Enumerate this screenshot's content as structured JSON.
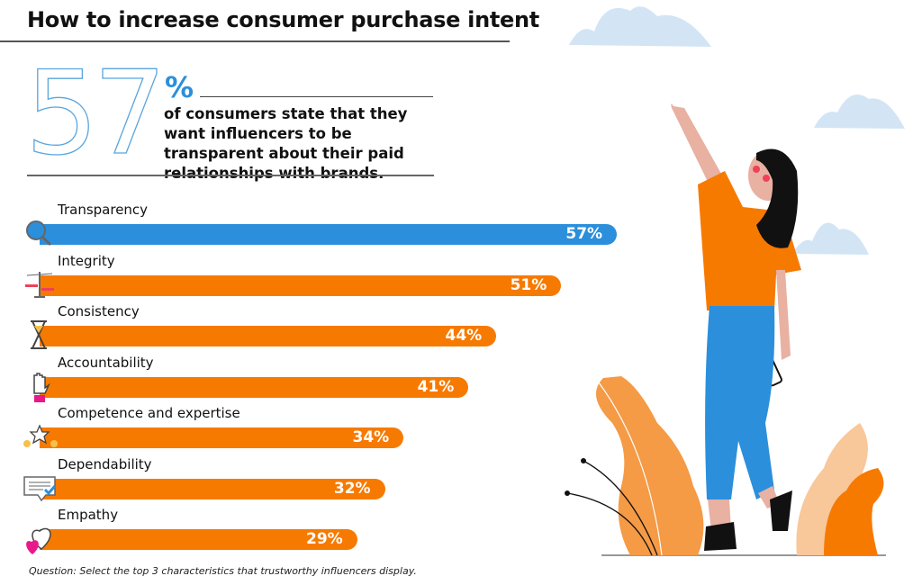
{
  "title": "How to increase consumer purchase intent",
  "highlight": {
    "number": "57",
    "percent_sign": "%",
    "statement": "of consumers state that they want influencers to be transparent about their paid relationships with brands."
  },
  "colors": {
    "blue": "#2b8fdb",
    "orange": "#f77a00",
    "cloud": "#d3e5f5"
  },
  "chart_data": {
    "type": "bar",
    "orientation": "horizontal",
    "categories": [
      "Transparency",
      "Integrity",
      "Consistency",
      "Accountability",
      "Competence and expertise",
      "Dependability",
      "Empathy"
    ],
    "values": [
      57,
      51,
      44,
      41,
      34,
      32,
      29
    ],
    "value_labels": [
      "57%",
      "51%",
      "44%",
      "41%",
      "34%",
      "32%",
      "29%"
    ],
    "icons": [
      "magnifier-icon",
      "scales-icon",
      "hourglass-icon",
      "raised-hand-icon",
      "stars-icon",
      "checklist-bubble-icon",
      "hearts-icon"
    ],
    "bar_colors": [
      "#2b8fdb",
      "#f77a00",
      "#f77a00",
      "#f77a00",
      "#f77a00",
      "#f77a00",
      "#f77a00"
    ],
    "unit": "%"
  },
  "footnote": "Question: Select the top 3 characteristics that trustworthy influencers display."
}
